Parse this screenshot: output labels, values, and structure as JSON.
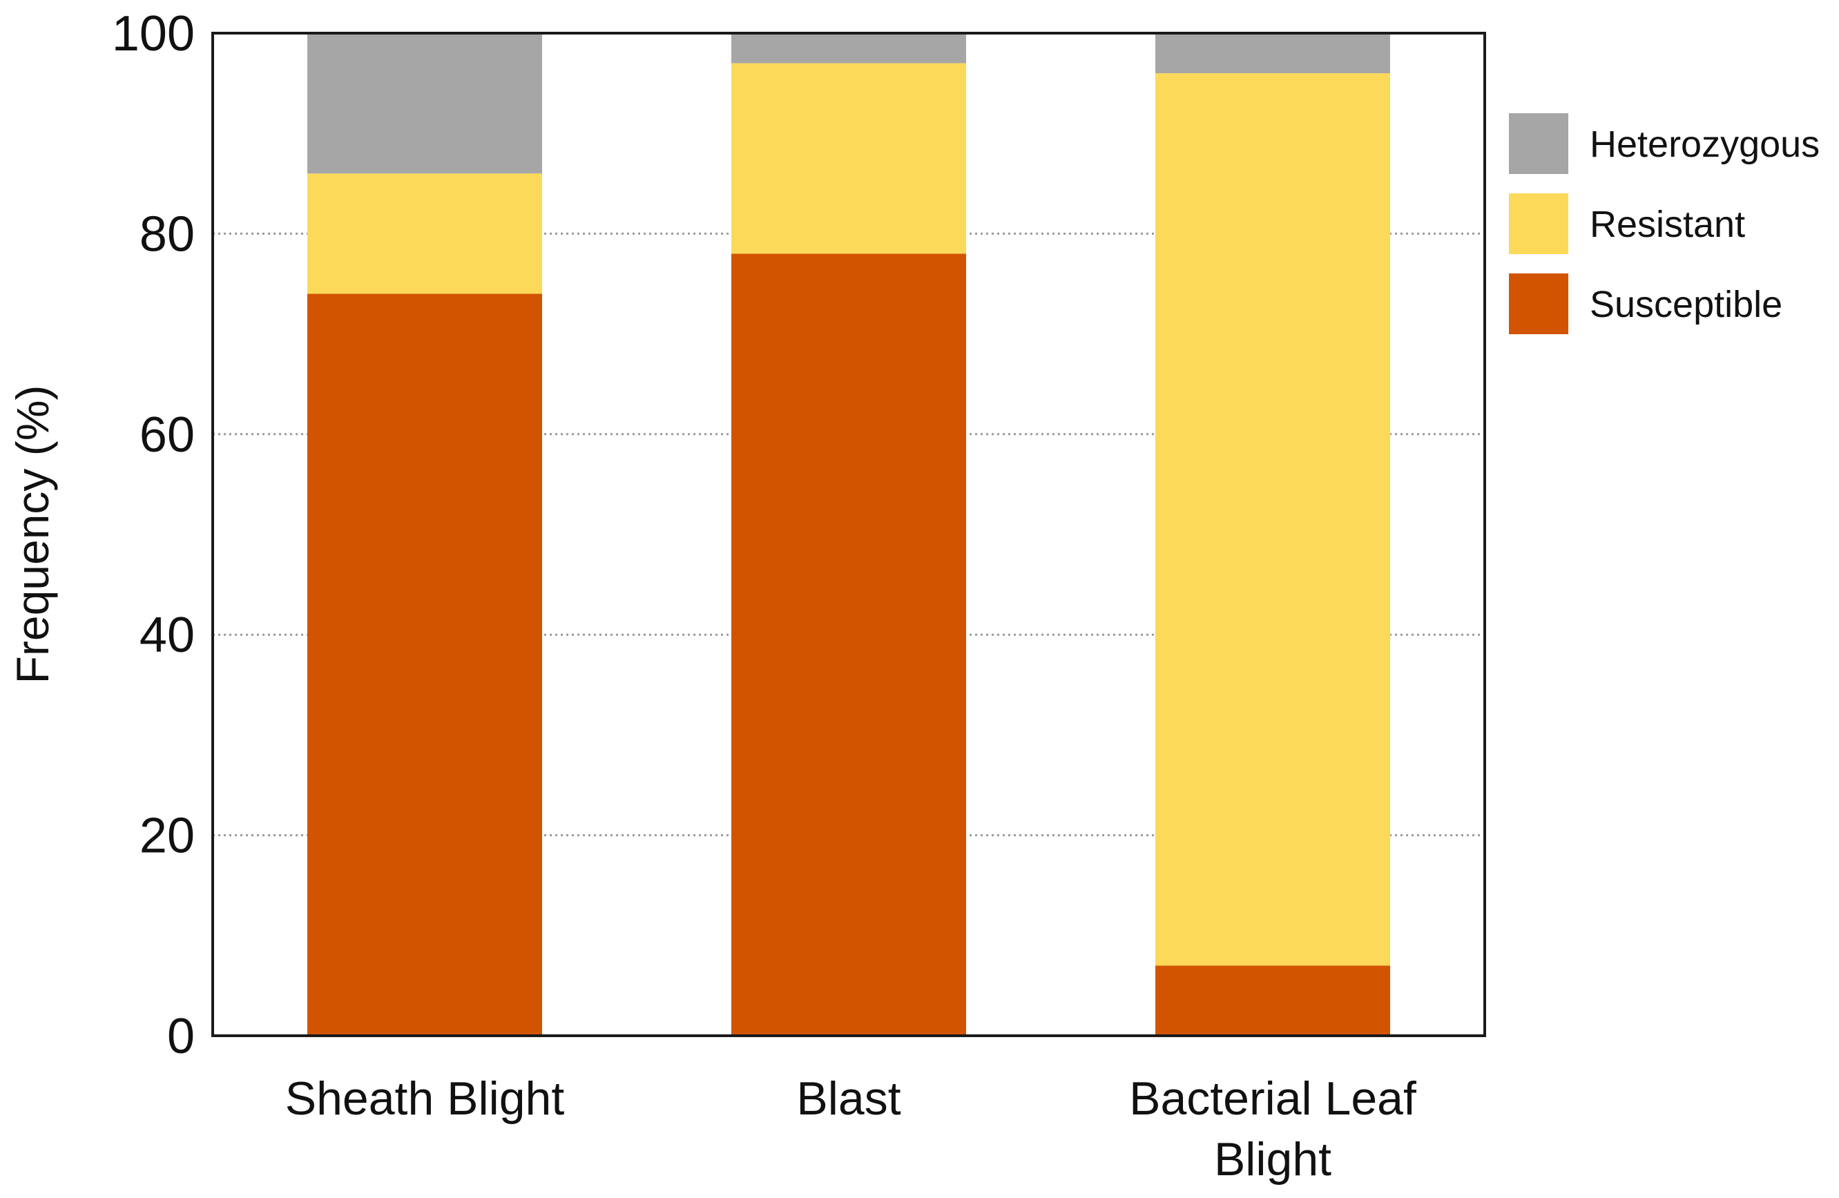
{
  "chart_data": {
    "type": "bar",
    "stacked": true,
    "title": "",
    "xlabel": "",
    "ylabel": "Frequency (%)",
    "ylim": [
      0,
      100
    ],
    "yticks": [
      0,
      20,
      40,
      60,
      80,
      100
    ],
    "grid": "horizontal-dotted",
    "legend_position": "right-top",
    "categories": [
      [
        "Sheath Blight"
      ],
      [
        "Blast"
      ],
      [
        "Bacterial Leaf",
        "Blight"
      ]
    ],
    "series": [
      {
        "name": "Susceptible",
        "color": "#D35400",
        "values": [
          74,
          78,
          7
        ]
      },
      {
        "name": "Resistant",
        "color": "#FDD95A",
        "values": [
          12,
          19,
          89
        ]
      },
      {
        "name": "Heterozygous",
        "color": "#A6A6A6",
        "values": [
          14,
          3,
          4
        ]
      }
    ],
    "legend_order": [
      "Heterozygous",
      "Resistant",
      "Susceptible"
    ]
  }
}
